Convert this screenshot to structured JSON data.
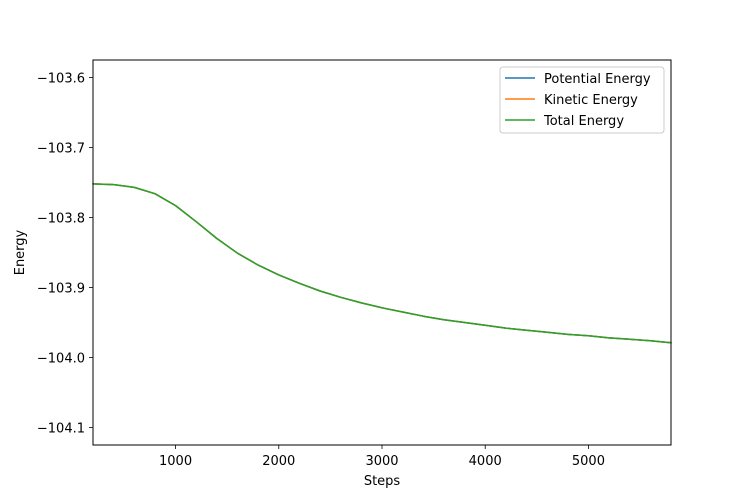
{
  "chart_data": {
    "type": "line",
    "xlabel": "Steps",
    "ylabel": "Energy",
    "xlim": [
      200,
      5800
    ],
    "ylim": [
      -104.125,
      -103.575
    ],
    "xticks": [
      1000,
      2000,
      3000,
      4000,
      5000
    ],
    "yticks": [
      -103.6,
      -103.7,
      -103.8,
      -103.9,
      -104.0,
      -104.1
    ],
    "ytick_labels": [
      "−103.6",
      "−103.7",
      "−103.8",
      "−103.9",
      "−104.0",
      "−104.1"
    ],
    "legend_position": "upper right",
    "x": [
      200,
      400,
      600,
      800,
      1000,
      1200,
      1400,
      1600,
      1800,
      2000,
      2200,
      2400,
      2600,
      2800,
      3000,
      3200,
      3400,
      3600,
      3800,
      4000,
      4200,
      4400,
      4600,
      4800,
      5000,
      5200,
      5400,
      5600,
      5800
    ],
    "series": [
      {
        "name": "Potential Energy",
        "color": "#1f77b4",
        "values": [
          -103.752,
          -103.753,
          -103.757,
          -103.766,
          -103.783,
          -103.806,
          -103.83,
          -103.851,
          -103.868,
          -103.882,
          -103.894,
          -103.905,
          -103.914,
          -103.922,
          -103.929,
          -103.935,
          -103.941,
          -103.946,
          -103.95,
          -103.954,
          -103.958,
          -103.961,
          -103.964,
          -103.967,
          -103.969,
          -103.972,
          -103.974,
          -103.976,
          -103.979
        ]
      },
      {
        "name": "Kinetic Energy",
        "color": "#ff7f0e",
        "values": [
          -103.752,
          -103.753,
          -103.757,
          -103.766,
          -103.783,
          -103.806,
          -103.83,
          -103.851,
          -103.868,
          -103.882,
          -103.894,
          -103.905,
          -103.914,
          -103.922,
          -103.929,
          -103.935,
          -103.941,
          -103.946,
          -103.95,
          -103.954,
          -103.958,
          -103.961,
          -103.964,
          -103.967,
          -103.969,
          -103.972,
          -103.974,
          -103.976,
          -103.979
        ]
      },
      {
        "name": "Total Energy",
        "color": "#2ca02c",
        "values": [
          -103.752,
          -103.753,
          -103.757,
          -103.766,
          -103.783,
          -103.806,
          -103.83,
          -103.851,
          -103.868,
          -103.882,
          -103.894,
          -103.905,
          -103.914,
          -103.922,
          -103.929,
          -103.935,
          -103.941,
          -103.946,
          -103.95,
          -103.954,
          -103.958,
          -103.961,
          -103.964,
          -103.967,
          -103.969,
          -103.972,
          -103.974,
          -103.976,
          -103.979
        ]
      }
    ]
  }
}
